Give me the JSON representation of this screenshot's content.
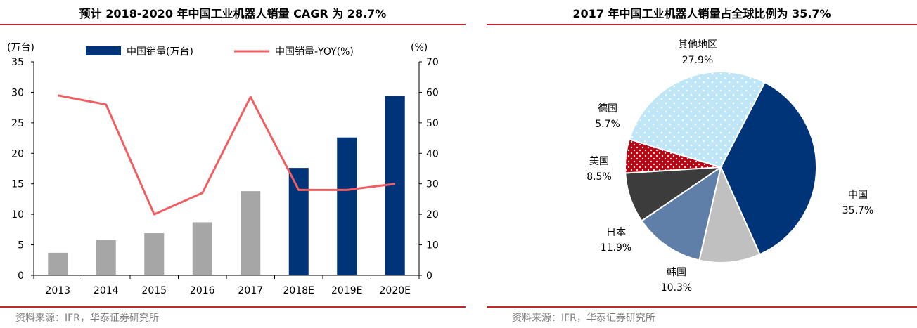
{
  "colors": {
    "accent_red": "#c0282d",
    "bar_actual": "#a6a6a6",
    "bar_forecast": "#003478",
    "line_yoy": "#f15e62",
    "source_text": "#7f7f7f"
  },
  "left": {
    "title": "预计 2018-2020 年中国工业机器人销量 CAGR 为 28.7%",
    "source": "资料来源：IFR，华泰证券研究所",
    "y_left_unit": "(万台)",
    "y_right_unit": "(%)"
  },
  "right": {
    "title": "2017 年中国工业机器人销量占全球比例为 35.7%",
    "source": "资料来源：IFR，华泰证券研究所"
  },
  "chart_data": [
    {
      "type": "bar",
      "categories": [
        "2013",
        "2014",
        "2015",
        "2016",
        "2017",
        "2018E",
        "2019E",
        "2020E"
      ],
      "series": [
        {
          "name": "中国销量(万台)",
          "type": "bar",
          "axis": "left",
          "values": [
            3.7,
            5.8,
            6.9,
            8.7,
            13.8,
            17.6,
            22.6,
            29.4
          ],
          "colors": [
            "#a6a6a6",
            "#a6a6a6",
            "#a6a6a6",
            "#a6a6a6",
            "#a6a6a6",
            "#003478",
            "#003478",
            "#003478"
          ]
        },
        {
          "name": "中国销量-YOY(%)",
          "type": "line",
          "axis": "right",
          "values": [
            59,
            56,
            20,
            27,
            58.5,
            28,
            28,
            30
          ],
          "color": "#f15e62"
        }
      ],
      "ylim_left": [
        0,
        35
      ],
      "yticks_left": [
        0,
        5,
        10,
        15,
        20,
        25,
        30,
        35
      ],
      "ylim_right": [
        0,
        70
      ],
      "yticks_right": [
        0,
        10,
        20,
        30,
        40,
        50,
        60,
        70
      ],
      "legend_position": "top",
      "grid": false
    },
    {
      "type": "pie",
      "slices": [
        {
          "label": "中国",
          "value": 35.7,
          "pct": "35.7%",
          "color": "#003478",
          "pattern": "solid"
        },
        {
          "label": "韩国",
          "value": 10.3,
          "pct": "10.3%",
          "color": "#c0c0c0",
          "pattern": "solid"
        },
        {
          "label": "日本",
          "value": 11.9,
          "pct": "11.9%",
          "color": "#5f7fa9",
          "pattern": "solid"
        },
        {
          "label": "美国",
          "value": 8.5,
          "pct": "8.5%",
          "color": "#3c3c3c",
          "pattern": "solid"
        },
        {
          "label": "德国",
          "value": 5.7,
          "pct": "5.7%",
          "color": "#c0000e",
          "pattern": "dots"
        },
        {
          "label": "其他地区",
          "value": 27.9,
          "pct": "27.9%",
          "color": "#bfe6f7",
          "pattern": "dots"
        }
      ],
      "start_angle_deg": 27.4,
      "direction": "clockwise"
    }
  ]
}
